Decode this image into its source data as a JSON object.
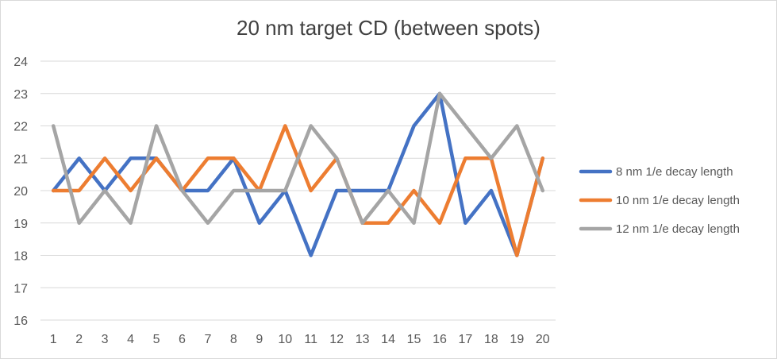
{
  "chart_data": {
    "type": "line",
    "title": "20 nm target CD (between spots)",
    "xlabel": "",
    "ylabel": "",
    "x": [
      1,
      2,
      3,
      4,
      5,
      6,
      7,
      8,
      9,
      10,
      11,
      12,
      13,
      14,
      15,
      16,
      17,
      18,
      19,
      20
    ],
    "ylim": [
      16,
      24
    ],
    "yticks": [
      16,
      17,
      18,
      19,
      20,
      21,
      22,
      23,
      24
    ],
    "grid": "horizontal",
    "legend_position": "right",
    "series": [
      {
        "name": "8 nm 1/e decay length",
        "color": "#4472c4",
        "values": [
          20,
          21,
          20,
          21,
          21,
          20,
          20,
          21,
          19,
          20,
          18,
          20,
          20,
          20,
          22,
          23,
          19,
          20,
          18,
          21
        ]
      },
      {
        "name": "10 nm 1/e decay length",
        "color": "#ed7d31",
        "values": [
          20,
          20,
          21,
          20,
          21,
          20,
          21,
          21,
          20,
          22,
          20,
          21,
          19,
          19,
          20,
          19,
          21,
          21,
          18,
          21
        ]
      },
      {
        "name": "12 nm 1/e decay length",
        "color": "#a5a5a5",
        "values": [
          22,
          19,
          20,
          19,
          22,
          20,
          19,
          20,
          20,
          20,
          22,
          21,
          19,
          20,
          19,
          23,
          22,
          21,
          22,
          20
        ]
      }
    ]
  }
}
